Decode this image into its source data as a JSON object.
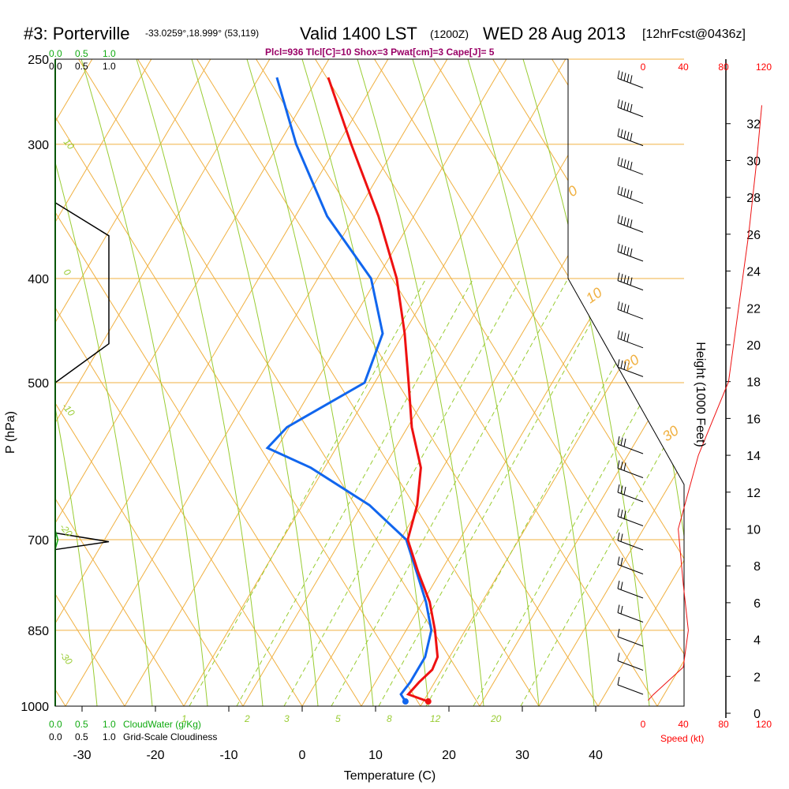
{
  "header": {
    "station": "#3: Porterville",
    "coords": "-33.0259°,18.999° (53,119)",
    "valid": "Valid 1400 LST",
    "zulu": "(1200Z)",
    "date": "WED 28 Aug 2013",
    "forecast": "[12hrFcst@0436z]",
    "indices": "Plcl=936 Tlcl[C]=10 Shox=3 Pwat[cm]=3 Cape[J]= 5"
  },
  "labels": {
    "pressure_axis": "P (hPa)",
    "temperature_axis": "Temperature (C)",
    "height_axis": "Height (1000 Feet)",
    "speed_axis": "Speed (kt)",
    "cloudwater": "CloudWater (g/Kg)",
    "cloudiness": "Grid-Scale Cloudiness"
  },
  "colors": {
    "temperature": "#ee1111",
    "dewpoint": "#1166ee",
    "isobar": "#f0b040",
    "dry_adiabat": "#f0b040",
    "moist_adiabat": "#99cc33",
    "mixing_ratio": "#99cc33",
    "cloud": "#000000",
    "cloudwater": "#11aa11",
    "wind_speed": "#ee1111"
  },
  "scale_ticks": {
    "top_green": [
      "0.0",
      "0.5",
      "1.0"
    ],
    "top_black": [
      "0.0",
      "0.5",
      "1.0"
    ],
    "bottom_green": [
      "0.0",
      "0.5",
      "1.0"
    ],
    "bottom_black": [
      "0.0",
      "0.5",
      "1.0"
    ],
    "speed_top": [
      "0",
      "40",
      "80",
      "120"
    ],
    "speed_bottom": [
      "0",
      "40",
      "80",
      "120"
    ]
  },
  "chart_data": {
    "type": "line",
    "subtype": "skew-T log-P sounding",
    "xlabel": "Temperature (C)",
    "ylabel": "P (hPa)",
    "x_ticks": [
      -30,
      -20,
      -10,
      0,
      10,
      20,
      30,
      40
    ],
    "pressure_levels": [
      250,
      300,
      400,
      500,
      700,
      850,
      1000
    ],
    "pressure_range": [
      1000,
      250
    ],
    "temperature_range_at_surface": [
      -34,
      36
    ],
    "temperature": [
      {
        "p": 990,
        "t": 16.8
      },
      {
        "p": 975,
        "t": 13.5
      },
      {
        "p": 950,
        "t": 14.0
      },
      {
        "p": 925,
        "t": 14.8
      },
      {
        "p": 900,
        "t": 14.5
      },
      {
        "p": 850,
        "t": 12.0
      },
      {
        "p": 800,
        "t": 9.0
      },
      {
        "p": 750,
        "t": 5.0
      },
      {
        "p": 700,
        "t": 1.0
      },
      {
        "p": 650,
        "t": -0.5
      },
      {
        "p": 600,
        "t": -3.0
      },
      {
        "p": 550,
        "t": -7.5
      },
      {
        "p": 500,
        "t": -11.5
      },
      {
        "p": 450,
        "t": -16.0
      },
      {
        "p": 400,
        "t": -21.5
      },
      {
        "p": 350,
        "t": -29.0
      },
      {
        "p": 300,
        "t": -38.5
      },
      {
        "p": 260,
        "t": -47.0
      }
    ],
    "dewpoint": [
      {
        "p": 990,
        "t": 13.7
      },
      {
        "p": 975,
        "t": 12.5
      },
      {
        "p": 950,
        "t": 12.8
      },
      {
        "p": 900,
        "t": 12.8
      },
      {
        "p": 850,
        "t": 11.5
      },
      {
        "p": 800,
        "t": 8.5
      },
      {
        "p": 750,
        "t": 4.8
      },
      {
        "p": 700,
        "t": 0.8
      },
      {
        "p": 650,
        "t": -7.0
      },
      {
        "p": 600,
        "t": -18.0
      },
      {
        "p": 575,
        "t": -25.5
      },
      {
        "p": 550,
        "t": -24.5
      },
      {
        "p": 500,
        "t": -17.5
      },
      {
        "p": 450,
        "t": -19.0
      },
      {
        "p": 400,
        "t": -25.0
      },
      {
        "p": 350,
        "t": -36.0
      },
      {
        "p": 300,
        "t": -46.0
      },
      {
        "p": 260,
        "t": -54.0
      }
    ],
    "surface_temperature": 16.8,
    "surface_dewpoint": 13.7,
    "dry_adiabat_labels": [
      "10",
      "0",
      "-10",
      "-20",
      "-30"
    ],
    "moist_adiabat_labels": [
      "0",
      "10",
      "20",
      "30"
    ],
    "mixing_ratio_labels": [
      "1",
      "2",
      "3",
      "5",
      "8",
      "12",
      "20"
    ],
    "cloud_water_gkg": [
      {
        "p": 700,
        "v": 0.05
      }
    ],
    "cloudiness": [
      {
        "p": 340,
        "v": 0.0
      },
      {
        "p": 365,
        "v": 1.0
      },
      {
        "p": 460,
        "v": 1.0
      },
      {
        "p": 500,
        "v": 0.0
      },
      {
        "p": 690,
        "v": 0.0
      },
      {
        "p": 703,
        "v": 1.0
      },
      {
        "p": 715,
        "v": 0.0
      }
    ],
    "height_ticks_kft": [
      0,
      2,
      4,
      6,
      8,
      10,
      12,
      14,
      16,
      18,
      20,
      22,
      24,
      26,
      28,
      30,
      32
    ],
    "wind_speed_kt": [
      {
        "h": 0.7,
        "v": 5
      },
      {
        "h": 1.0,
        "v": 10
      },
      {
        "h": 2.5,
        "v": 40
      },
      {
        "h": 4.5,
        "v": 45
      },
      {
        "h": 7,
        "v": 40
      },
      {
        "h": 10,
        "v": 35
      },
      {
        "h": 14,
        "v": 55
      },
      {
        "h": 18,
        "v": 85
      },
      {
        "h": 22,
        "v": 95
      },
      {
        "h": 26,
        "v": 105
      },
      {
        "h": 30,
        "v": 113
      },
      {
        "h": 33,
        "v": 118
      }
    ],
    "wind_barb_speeds_kt": [
      5,
      10,
      10,
      15,
      15,
      20,
      20,
      25,
      25,
      30,
      30,
      35,
      35,
      40,
      45,
      50,
      55,
      60,
      65,
      70,
      80,
      90,
      100,
      110,
      115,
      120
    ]
  }
}
